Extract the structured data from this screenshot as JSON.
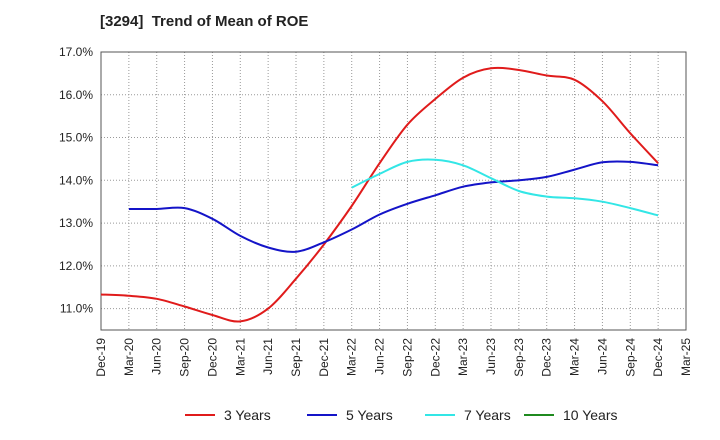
{
  "chart_data": {
    "type": "line",
    "title": "[3294]  Trend of Mean of ROE",
    "xlabel": "",
    "ylabel": "",
    "ylim": [
      10.5,
      17.0
    ],
    "y_ticks": [
      "11.0%",
      "12.0%",
      "13.0%",
      "14.0%",
      "15.0%",
      "16.0%",
      "17.0%"
    ],
    "y_tick_values": [
      11,
      12,
      13,
      14,
      15,
      16,
      17
    ],
    "x_ticks": [
      "Dec-19",
      "Mar-20",
      "Jun-20",
      "Sep-20",
      "Dec-20",
      "Mar-21",
      "Jun-21",
      "Sep-21",
      "Dec-21",
      "Mar-22",
      "Jun-22",
      "Sep-22",
      "Dec-22",
      "Mar-23",
      "Jun-23",
      "Sep-23",
      "Dec-23",
      "Mar-24",
      "Jun-24",
      "Sep-24",
      "Dec-24",
      "Mar-25"
    ],
    "grid": true,
    "legend_position": "bottom",
    "series": [
      {
        "name": "3 Years",
        "color": "#e01b1b",
        "values": [
          11.33,
          11.3,
          11.23,
          11.05,
          10.85,
          10.7,
          11.0,
          11.7,
          12.5,
          13.4,
          14.4,
          15.3,
          15.9,
          16.4,
          16.62,
          16.58,
          16.45,
          16.35,
          15.85,
          15.1,
          14.4,
          null
        ]
      },
      {
        "name": "5 Years",
        "color": "#1414c8",
        "values": [
          null,
          13.33,
          13.33,
          13.35,
          13.1,
          12.7,
          12.43,
          12.33,
          12.55,
          12.85,
          13.2,
          13.45,
          13.65,
          13.85,
          13.95,
          14.0,
          14.08,
          14.25,
          14.42,
          14.43,
          14.35,
          null
        ]
      },
      {
        "name": "7 Years",
        "color": "#33e6e6",
        "values": [
          null,
          null,
          null,
          null,
          null,
          null,
          null,
          null,
          null,
          13.83,
          14.15,
          14.43,
          14.48,
          14.35,
          14.05,
          13.75,
          13.62,
          13.58,
          13.5,
          13.35,
          13.18,
          null
        ]
      },
      {
        "name": "10 Years",
        "color": "#1f8a1f",
        "values": [
          null,
          null,
          null,
          null,
          null,
          null,
          null,
          null,
          null,
          null,
          null,
          null,
          null,
          null,
          null,
          null,
          null,
          null,
          null,
          null,
          null,
          null
        ]
      }
    ]
  }
}
